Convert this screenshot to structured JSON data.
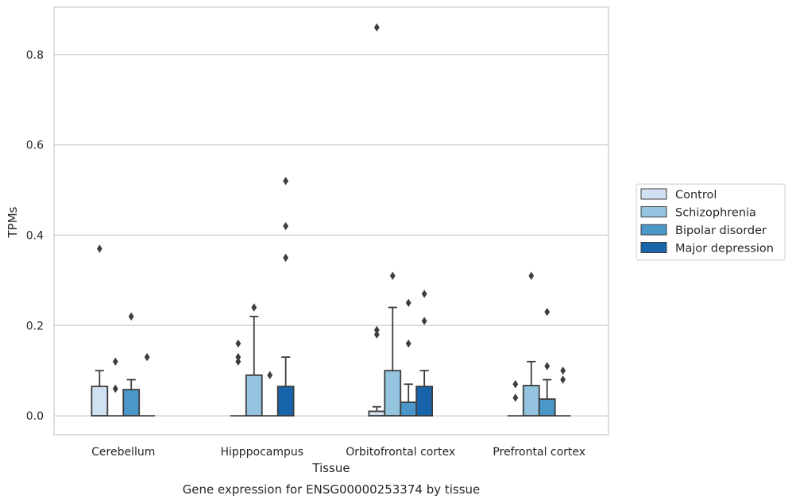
{
  "chart_data": {
    "type": "box",
    "xlabel": "Tissue",
    "ylabel": "TPMs",
    "caption": "Gene expression for ENSG00000253374 by tissue",
    "ylim": [
      -0.042,
      0.905
    ],
    "yticks": [
      0.0,
      0.2,
      0.4,
      0.6,
      0.8
    ],
    "ytick_labels": [
      "0.0",
      "0.2",
      "0.4",
      "0.6",
      "0.8"
    ],
    "grid": "horizontal",
    "legend_placement": "right",
    "categories": [
      "Cerebellum",
      "Hipppocampus",
      "Orbitofrontal cortex",
      "Prefrontal cortex"
    ],
    "series": [
      {
        "name": "Control",
        "color": "#d0e1f2",
        "boxes": [
          {
            "q1": 0.0,
            "median": 0.0,
            "q3": 0.065,
            "whisker_low": 0.0,
            "whisker_high": 0.1,
            "outliers": [
              0.37
            ]
          },
          {
            "q1": 0.0,
            "median": 0.0,
            "q3": 0.0,
            "whisker_low": 0.0,
            "whisker_high": 0.0,
            "outliers": []
          },
          {
            "q1": 0.0,
            "median": 0.0,
            "q3": 0.01,
            "whisker_low": 0.0,
            "whisker_high": 0.02,
            "outliers": [
              0.86
            ]
          },
          {
            "q1": 0.0,
            "median": 0.0,
            "q3": 0.0,
            "whisker_low": 0.0,
            "whisker_high": 0.0,
            "outliers": []
          }
        ]
      },
      {
        "name": "Schizophrenia",
        "color": "#94c4df",
        "boxes": [
          {
            "q1": 0.0,
            "median": 0.0,
            "q3": 0.0,
            "whisker_low": 0.0,
            "whisker_high": 0.0,
            "outliers": [
              0.12,
              0.06
            ]
          },
          {
            "q1": 0.0,
            "median": 0.0,
            "q3": 0.09,
            "whisker_low": 0.0,
            "whisker_high": 0.22,
            "outliers": [
              0.24
            ]
          },
          {
            "q1": 0.0,
            "median": 0.0,
            "q3": 0.1,
            "whisker_low": 0.0,
            "whisker_high": 0.24,
            "outliers": [
              0.31
            ]
          },
          {
            "q1": 0.0,
            "median": 0.0,
            "q3": 0.067,
            "whisker_low": 0.0,
            "whisker_high": 0.12,
            "outliers": [
              0.31
            ]
          }
        ]
      },
      {
        "name": "Bipolar disorder",
        "color": "#4a98c9",
        "boxes": [
          {
            "q1": 0.0,
            "median": 0.0,
            "q3": 0.058,
            "whisker_low": 0.0,
            "whisker_high": 0.08,
            "outliers": [
              0.22
            ]
          },
          {
            "q1": 0.0,
            "median": 0.0,
            "q3": 0.0,
            "whisker_low": 0.0,
            "whisker_high": 0.0,
            "outliers": [
              0.09
            ]
          },
          {
            "q1": 0.0,
            "median": 0.0,
            "q3": 0.03,
            "whisker_low": 0.0,
            "whisker_high": 0.07,
            "outliers": [
              0.25,
              0.16
            ]
          },
          {
            "q1": 0.0,
            "median": 0.0,
            "q3": 0.037,
            "whisker_low": 0.0,
            "whisker_high": 0.08,
            "outliers": [
              0.23,
              0.11
            ]
          }
        ]
      },
      {
        "name": "Major depression",
        "color": "#1764ab",
        "boxes": [
          {
            "q1": 0.0,
            "median": 0.0,
            "q3": 0.0,
            "whisker_low": 0.0,
            "whisker_high": 0.0,
            "outliers": [
              0.13
            ]
          },
          {
            "q1": 0.0,
            "median": 0.0,
            "q3": 0.065,
            "whisker_low": 0.0,
            "whisker_high": 0.13,
            "outliers": [
              0.52,
              0.42,
              0.35
            ]
          },
          {
            "q1": 0.0,
            "median": 0.0,
            "q3": 0.065,
            "whisker_low": 0.0,
            "whisker_high": 0.1,
            "outliers": [
              0.27,
              0.21
            ]
          },
          {
            "q1": 0.0,
            "median": 0.0,
            "q3": 0.0,
            "whisker_low": 0.0,
            "whisker_high": 0.0,
            "outliers": [
              0.1,
              0.08
            ]
          }
        ]
      }
    ],
    "extra_outliers": [
      {
        "category": "Cerebellum",
        "series": "Schizophrenia",
        "y": 0.06
      },
      {
        "category": "Hipppocampus",
        "series": "Control",
        "y": 0.16
      },
      {
        "category": "Hipppocampus",
        "series": "Control",
        "y": 0.13
      },
      {
        "category": "Hipppocampus",
        "series": "Control",
        "y": 0.12
      },
      {
        "category": "Orbitofrontal cortex",
        "series": "Control",
        "y": 0.19
      },
      {
        "category": "Orbitofrontal cortex",
        "series": "Control",
        "y": 0.18
      },
      {
        "category": "Prefrontal cortex",
        "series": "Control",
        "y": 0.07
      },
      {
        "category": "Prefrontal cortex",
        "series": "Control",
        "y": 0.04
      }
    ]
  }
}
